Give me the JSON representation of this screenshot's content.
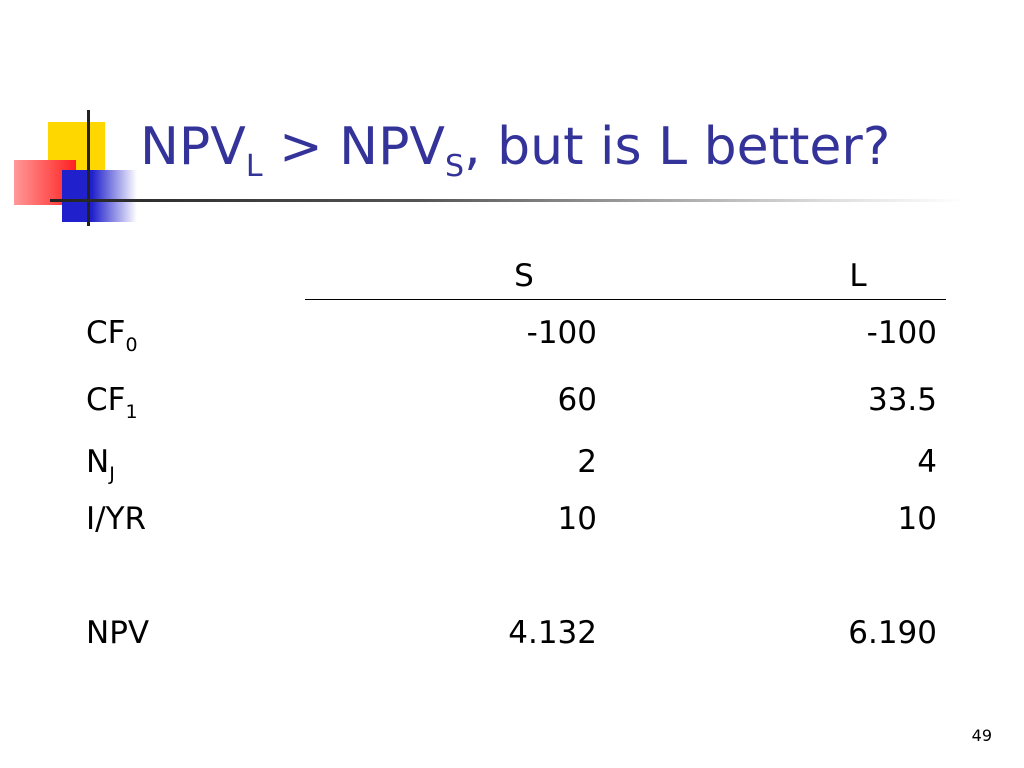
{
  "title": {
    "text1": "NPV",
    "sub1": "L",
    "text2": " > NPV",
    "sub2": "S",
    "text3": ", but is L better?"
  },
  "table": {
    "columns": [
      "S",
      "L"
    ],
    "rows": [
      {
        "label": "CF",
        "sub": "0",
        "s": "-100",
        "l": "-100"
      },
      {
        "label": "CF",
        "sub": "1",
        "s": "60",
        "l": "33.5"
      },
      {
        "label": "N",
        "sub": "J",
        "s": "2",
        "l": "4"
      },
      {
        "label": "I/YR",
        "s": "10",
        "l": "10"
      },
      {
        "label": "NPV",
        "s": "4.132",
        "l": "6.190"
      }
    ]
  },
  "page_number": "49"
}
